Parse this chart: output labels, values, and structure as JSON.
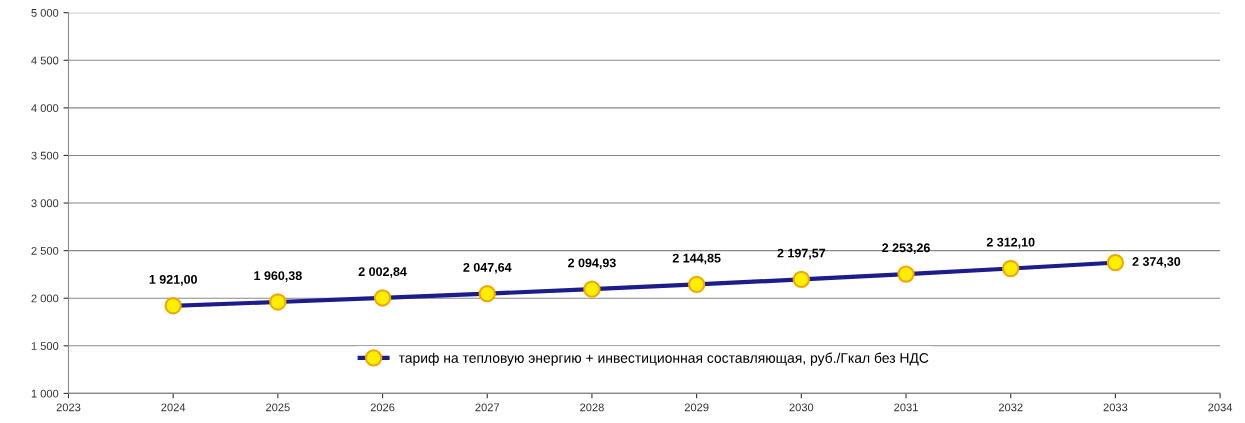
{
  "chart_data": {
    "type": "line",
    "x": [
      2024,
      2025,
      2026,
      2027,
      2028,
      2029,
      2030,
      2031,
      2032,
      2033
    ],
    "series": [
      {
        "name": "тариф на тепловую энергию + инвестиционная составляющая, руб./Гкал без НДС",
        "color": "#1c1c8a",
        "values": [
          1921.0,
          1960.38,
          2002.84,
          2047.64,
          2094.93,
          2144.85,
          2197.57,
          2253.26,
          2312.1,
          2374.3
        ],
        "value_labels": [
          "1 921,00",
          "1 960,38",
          "2 002,84",
          "2 047,64",
          "2 094,93",
          "2 144,85",
          "2 197,57",
          "2 253,26",
          "2 312,10",
          "2 374,30"
        ]
      }
    ],
    "xlim": [
      2023,
      2034
    ],
    "xticks": [
      2023,
      2024,
      2025,
      2026,
      2027,
      2028,
      2029,
      2030,
      2031,
      2032,
      2033,
      2034
    ],
    "ylim": [
      1000,
      5000
    ],
    "yticks": [
      {
        "value": 1000,
        "label": "1 000"
      },
      {
        "value": 1500,
        "label": "1 500"
      },
      {
        "value": 2000,
        "label": "2 000"
      },
      {
        "value": 2500,
        "label": "2 500"
      },
      {
        "value": 3000,
        "label": "3 000"
      },
      {
        "value": 3500,
        "label": "3 500"
      },
      {
        "value": 4000,
        "label": "4 000"
      },
      {
        "value": 4500,
        "label": "4 500"
      },
      {
        "value": 5000,
        "label": "5 000"
      }
    ],
    "grid": "y",
    "legend": "bottom",
    "marker": "circle",
    "line_style": "solid"
  }
}
